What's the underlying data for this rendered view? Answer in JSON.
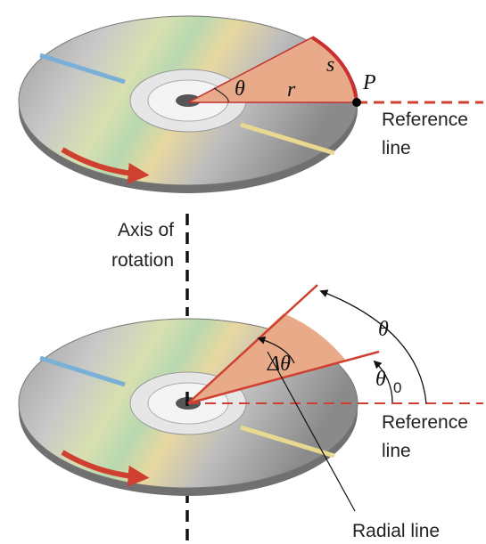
{
  "top_disc": {
    "theta": "θ",
    "r": "r",
    "s": "s",
    "P": "P",
    "reference_line": [
      "Reference",
      "line"
    ]
  },
  "axis_label": [
    "Axis of",
    "rotation"
  ],
  "bottom_disc": {
    "delta_theta": "Δθ",
    "theta": "θ",
    "theta0": "θ",
    "theta0_sub": "0",
    "reference_line": [
      "Reference",
      "line"
    ],
    "radial_line": "Radial line"
  }
}
